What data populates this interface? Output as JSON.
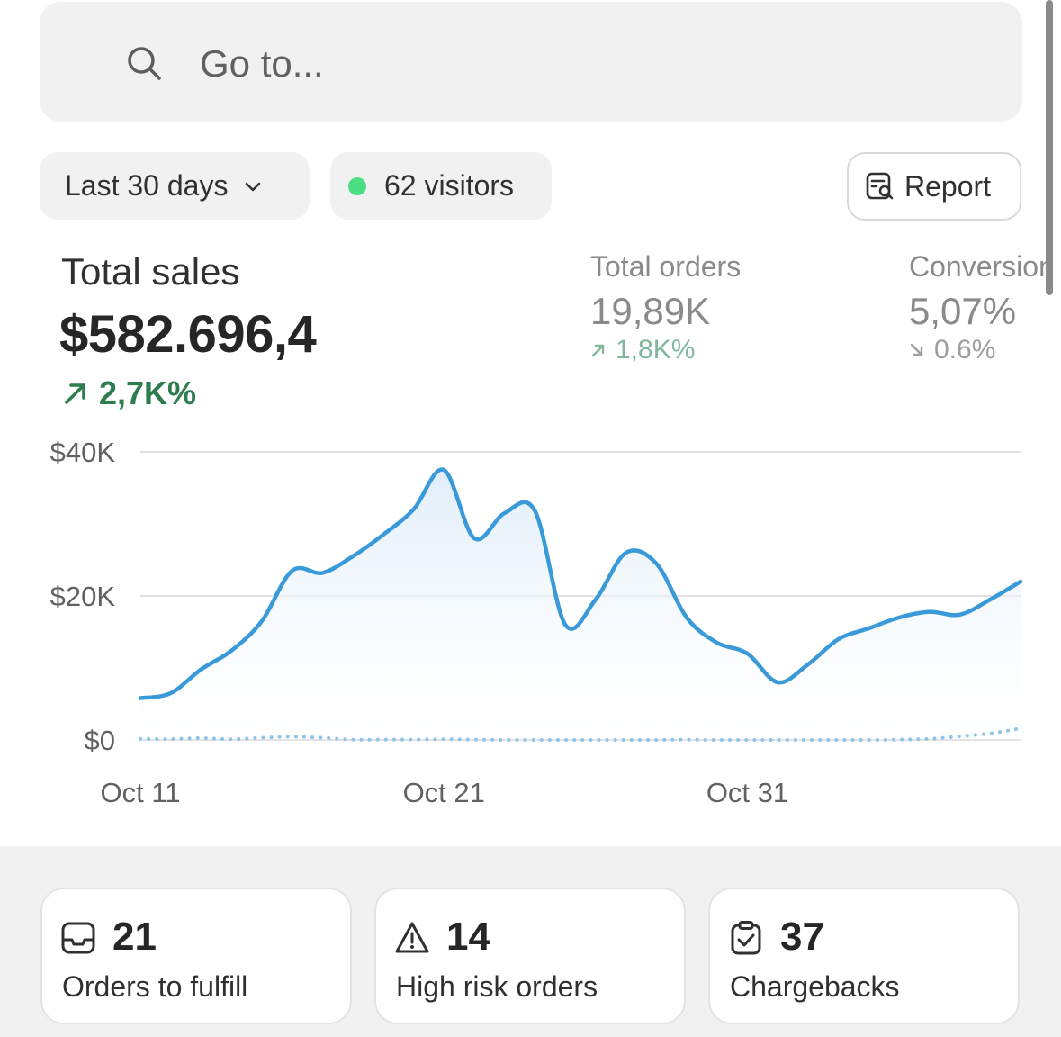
{
  "search": {
    "placeholder": "Go to..."
  },
  "filters": {
    "date_range_label": "Last 30 days",
    "visitors_label": "62 visitors",
    "visitors_dot_color": "#4ade80",
    "report_label": "Report"
  },
  "metrics": {
    "total_sales": {
      "label": "Total sales",
      "value": "$582.696,4",
      "change": "2,7K%"
    },
    "total_orders": {
      "label": "Total orders",
      "value": "19,89K",
      "change": "1,8K%"
    },
    "conversion": {
      "label": "Conversion",
      "value": "5,07%",
      "change": "0.6%"
    }
  },
  "chart_data": {
    "type": "line",
    "ylabel_ticks": [
      "$0",
      "$20K",
      "$40K"
    ],
    "x_tick_labels": [
      "Oct 11",
      "Oct 21",
      "Oct 31"
    ],
    "ylim": [
      0,
      40000
    ],
    "grid": true,
    "series": [
      {
        "style": "solid",
        "color": "#3a9ad9",
        "x": [
          0,
          1,
          2,
          3,
          4,
          5,
          6,
          7,
          8,
          9,
          10,
          11,
          12,
          13,
          14,
          15,
          16,
          17,
          18,
          19,
          20,
          21,
          22,
          23,
          24,
          25,
          26,
          27,
          28,
          29
        ],
        "values": [
          5800,
          6500,
          9800,
          12400,
          16500,
          23500,
          23200,
          25500,
          28500,
          32000,
          37500,
          28000,
          31500,
          31800,
          16000,
          19500,
          26000,
          24500,
          17000,
          13500,
          12000,
          8000,
          10500,
          14000,
          15500,
          17000,
          17800,
          17400,
          19500,
          22000
        ]
      },
      {
        "style": "dotted",
        "color": "#8ec5e8",
        "x": [
          0,
          1,
          2,
          3,
          4,
          5,
          6,
          7,
          8,
          9,
          10,
          11,
          12,
          13,
          14,
          15,
          16,
          17,
          18,
          19,
          20,
          21,
          22,
          23,
          24,
          25,
          26,
          27,
          28,
          29
        ],
        "values": [
          150,
          120,
          250,
          100,
          300,
          450,
          300,
          50,
          50,
          50,
          100,
          50,
          0,
          0,
          0,
          0,
          0,
          0,
          50,
          0,
          0,
          0,
          0,
          0,
          0,
          50,
          150,
          500,
          900,
          1600
        ]
      }
    ]
  },
  "cards": [
    {
      "icon": "inbox-icon",
      "count": "21",
      "label": "Orders to fulfill"
    },
    {
      "icon": "warning-icon",
      "count": "14",
      "label": "High risk orders"
    },
    {
      "icon": "clipboard-check-icon",
      "count": "37",
      "label": "Chargebacks"
    }
  ],
  "colors": {
    "positive": "#2e7d50",
    "line": "#3a9ad9",
    "card_border": "#e3e3e3"
  }
}
